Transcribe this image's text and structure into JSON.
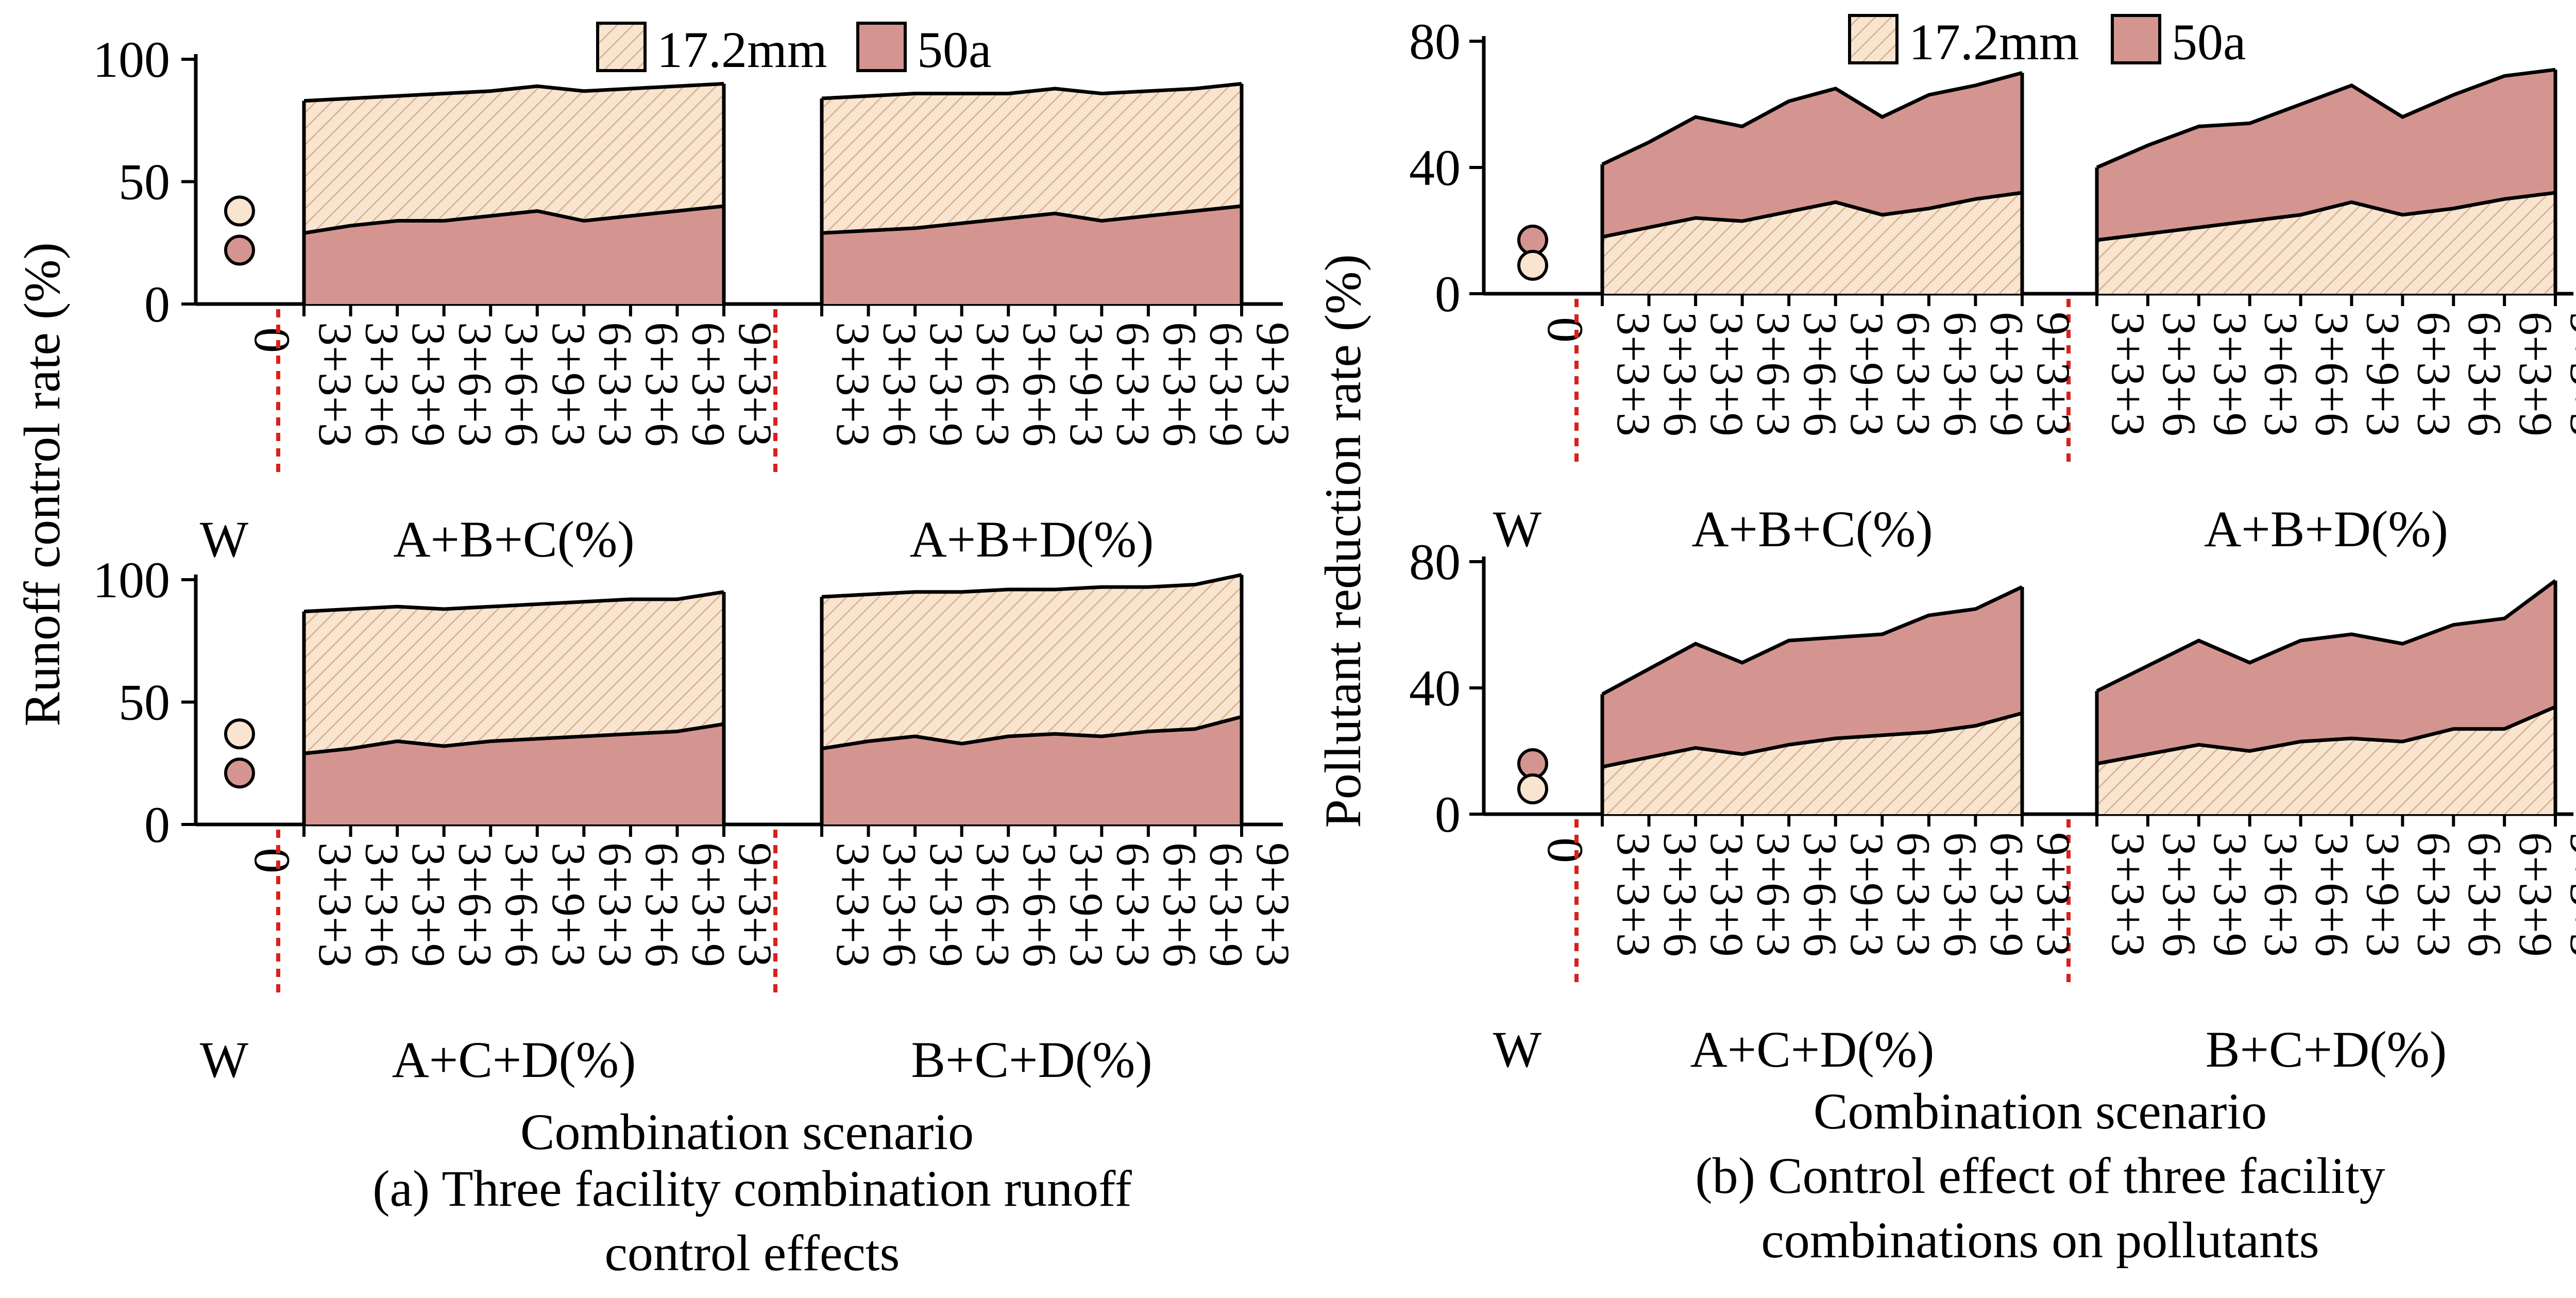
{
  "legend": {
    "s1": "17.2mm",
    "s2": "50a"
  },
  "colors": {
    "s1_fill": "#f8e4cf",
    "s1_hatch": "#d6b08a",
    "s2_fill": "#d49591",
    "outline": "#000000",
    "divider": "#d9201e"
  },
  "w_label": "W",
  "zero_tick": "0",
  "x_title": "Combination scenario",
  "x_ticks": [
    "3+3+3",
    "3+3+6",
    "3+3+9",
    "3+6+3",
    "3+6+6",
    "3+9+3",
    "6+3+3",
    "6+3+6",
    "6+3+9",
    "9+3+3"
  ],
  "chart_data": [
    {
      "type": "area",
      "panel": "a",
      "ylabel": "Runoff control rate (%)",
      "ylim": [
        0,
        100
      ],
      "yticks": [
        0,
        50,
        100
      ],
      "caption_lines": [
        "(a) Three facility combination runoff",
        "control effects"
      ],
      "rows": [
        {
          "ticks": [
            "0",
            "50",
            "100"
          ],
          "w_points": {
            "s1": 38,
            "s2": 22
          },
          "groups": [
            {
              "label": "A+B+C(%)",
              "s1": [
                83,
                84,
                85,
                86,
                87,
                89,
                87,
                88,
                89,
                90
              ],
              "s2": [
                29,
                32,
                34,
                34,
                36,
                38,
                34,
                36,
                38,
                40
              ]
            },
            {
              "label": "A+B+D(%)",
              "s1": [
                84,
                85,
                86,
                86,
                86,
                88,
                86,
                87,
                88,
                90
              ],
              "s2": [
                29,
                30,
                31,
                33,
                35,
                37,
                34,
                36,
                38,
                40
              ]
            }
          ]
        },
        {
          "ticks": [
            "0",
            "50",
            "100"
          ],
          "w_points": {
            "s1": 37,
            "s2": 21
          },
          "groups": [
            {
              "label": "A+C+D(%)",
              "s1": [
                87,
                88,
                89,
                88,
                89,
                90,
                91,
                92,
                92,
                95
              ],
              "s2": [
                29,
                31,
                34,
                32,
                34,
                35,
                36,
                37,
                38,
                41
              ]
            },
            {
              "label": "B+C+D(%)",
              "s1": [
                93,
                94,
                95,
                95,
                96,
                96,
                97,
                97,
                98,
                102
              ],
              "s2": [
                31,
                34,
                36,
                33,
                36,
                37,
                36,
                38,
                39,
                44
              ]
            }
          ]
        }
      ]
    },
    {
      "type": "area",
      "panel": "b",
      "ylabel": "Pollutant reduction rate (%)",
      "ylim": [
        0,
        80
      ],
      "yticks": [
        0,
        40,
        80
      ],
      "caption_lines": [
        "(b) Control effect of three facility",
        "combinations on pollutants"
      ],
      "rows": [
        {
          "ticks": [
            "0",
            "40",
            "80"
          ],
          "w_points": {
            "s1": 9,
            "s2": 17
          },
          "groups": [
            {
              "label": "A+B+C(%)",
              "s1": [
                18,
                21,
                24,
                23,
                26,
                29,
                25,
                27,
                30,
                32
              ],
              "s2": [
                41,
                48,
                56,
                53,
                61,
                65,
                56,
                63,
                66,
                70
              ]
            },
            {
              "label": "A+B+D(%)",
              "s1": [
                17,
                19,
                21,
                23,
                25,
                29,
                25,
                27,
                30,
                32
              ],
              "s2": [
                40,
                47,
                53,
                54,
                60,
                66,
                56,
                63,
                69,
                71
              ]
            }
          ]
        },
        {
          "ticks": [
            "0",
            "40",
            "80"
          ],
          "w_points": {
            "s1": 8,
            "s2": 16
          },
          "groups": [
            {
              "label": "A+C+D(%)",
              "s1": [
                15,
                18,
                21,
                19,
                22,
                24,
                25,
                26,
                28,
                32
              ],
              "s2": [
                38,
                46,
                54,
                48,
                55,
                56,
                57,
                63,
                65,
                72
              ]
            },
            {
              "label": "B+C+D(%)",
              "s1": [
                16,
                19,
                22,
                20,
                23,
                24,
                23,
                27,
                27,
                34
              ],
              "s2": [
                39,
                47,
                55,
                48,
                55,
                57,
                54,
                60,
                62,
                74
              ]
            }
          ]
        }
      ]
    }
  ]
}
